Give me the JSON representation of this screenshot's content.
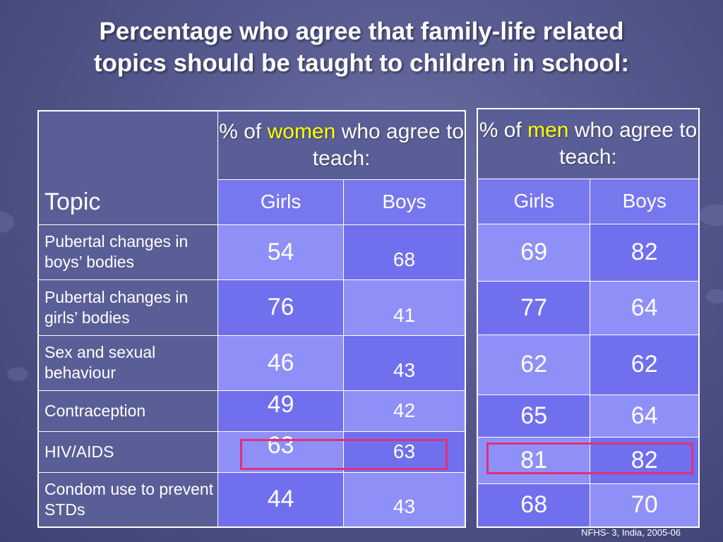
{
  "title": {
    "line1": "Percentage who agree that family-life related",
    "line2": "topics should be taught to children in school:"
  },
  "women_table": {
    "header_pre": "% of ",
    "header_highlight": "women",
    "header_post": " who agree to teach:",
    "topic_header": "Topic",
    "col_girls": "Girls",
    "col_boys": "Boys",
    "rows": [
      {
        "topic": "Pubertal changes in boys’ bodies",
        "girls": "54",
        "boys": "68"
      },
      {
        "topic": "Pubertal changes in girls’ bodies",
        "girls": "76",
        "boys": "41"
      },
      {
        "topic": "Sex and sexual behaviour",
        "girls": "46",
        "boys": "43"
      },
      {
        "topic": "Contraception",
        "girls": "49",
        "boys": "42"
      },
      {
        "topic": "HIV/AIDS",
        "girls": "63",
        "boys": "63"
      },
      {
        "topic": "Condom use to prevent STDs",
        "girls": "44",
        "boys": "43"
      }
    ]
  },
  "men_table": {
    "header_pre": "% of ",
    "header_highlight": "men",
    "header_post": " who agree to teach:",
    "col_girls": "Girls",
    "col_boys": "Boys",
    "rows": [
      {
        "girls": "69",
        "boys": "82"
      },
      {
        "girls": "77",
        "boys": "64"
      },
      {
        "girls": "62",
        "boys": "62"
      },
      {
        "girls": "65",
        "boys": "64"
      },
      {
        "girls": "81",
        "boys": "82"
      },
      {
        "girls": "68",
        "boys": "70"
      }
    ]
  },
  "highlight_color": "#e0307a",
  "source": "NFHS- 3, India, 2005-06"
}
